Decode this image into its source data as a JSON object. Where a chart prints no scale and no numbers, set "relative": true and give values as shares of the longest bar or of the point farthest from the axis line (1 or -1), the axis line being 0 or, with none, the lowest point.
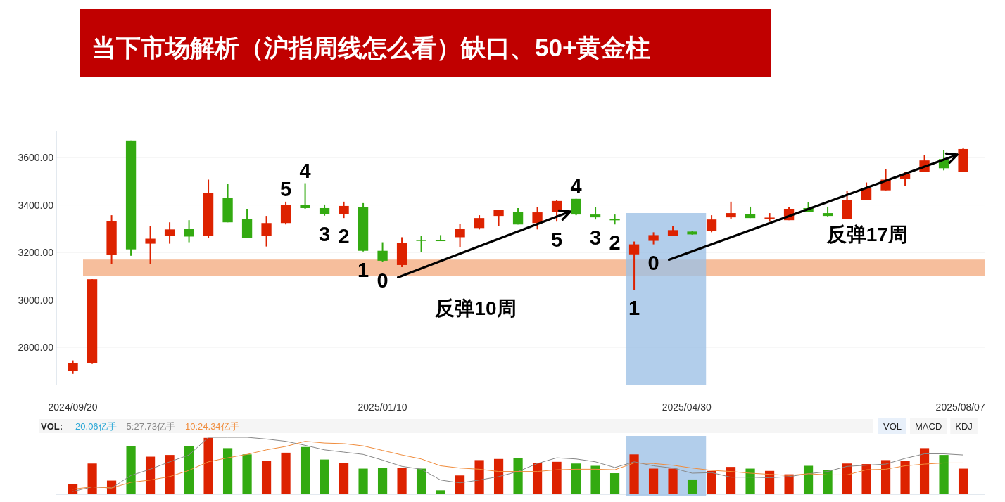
{
  "chart_data": [
    {
      "type": "candlestick",
      "title": "当下市场解析（沪指周线怎么看）缺口、50+黄金柱",
      "x": [
        "2024-09-20",
        "2024-09-27",
        "2024-10-04",
        "2024-10-11",
        "2024-10-18",
        "2024-10-25",
        "2024-11-01",
        "2024-11-08",
        "2024-11-15",
        "2024-11-22",
        "2024-11-29",
        "2024-12-06",
        "2024-12-13",
        "2024-12-20",
        "2024-12-27",
        "2025-01-03",
        "2025-01-10",
        "2025-01-17",
        "2025-01-24",
        "2025-01-31",
        "2025-02-07",
        "2025-02-14",
        "2025-02-21",
        "2025-02-28",
        "2025-03-07",
        "2025-03-14",
        "2025-03-21",
        "2025-03-28",
        "2025-04-04",
        "2025-04-11",
        "2025-04-18",
        "2025-04-25",
        "2025-05-02",
        "2025-05-09",
        "2025-05-16",
        "2025-05-23",
        "2025-05-30",
        "2025-06-06",
        "2025-06-13",
        "2025-06-20",
        "2025-06-27",
        "2025-07-04",
        "2025-07-11",
        "2025-07-18",
        "2025-07-25",
        "2025-08-01",
        "2025-08-08"
      ],
      "ohlc": [
        [
          2700,
          2745,
          2688,
          2733
        ],
        [
          2733,
          3087,
          2730,
          3087
        ],
        [
          3189,
          3357,
          3150,
          3333
        ],
        [
          3672,
          3672,
          3186,
          3213
        ],
        [
          3237,
          3312,
          3150,
          3258
        ],
        [
          3270,
          3327,
          3237,
          3297
        ],
        [
          3300,
          3336,
          3243,
          3267
        ],
        [
          3270,
          3507,
          3261,
          3450
        ],
        [
          3429,
          3489,
          3327,
          3327
        ],
        [
          3342,
          3384,
          3261,
          3261
        ],
        [
          3270,
          3354,
          3225,
          3324
        ],
        [
          3324,
          3414,
          3318,
          3399
        ],
        [
          3399,
          3492,
          3384,
          3387
        ],
        [
          3387,
          3402,
          3355,
          3363
        ],
        [
          3363,
          3414,
          3345,
          3396
        ],
        [
          3390,
          3408,
          3204,
          3207
        ],
        [
          3207,
          3243,
          3160,
          3165
        ],
        [
          3147,
          3264,
          3138,
          3240
        ],
        [
          3253,
          3270,
          3201,
          3250
        ],
        [
          3252,
          3273,
          3249,
          3249
        ],
        [
          3264,
          3321,
          3222,
          3300
        ],
        [
          3303,
          3357,
          3297,
          3345
        ],
        [
          3354,
          3378,
          3312,
          3378
        ],
        [
          3372,
          3387,
          3318,
          3318
        ],
        [
          3324,
          3390,
          3297,
          3369
        ],
        [
          3372,
          3420,
          3330,
          3417
        ],
        [
          3426,
          3426,
          3357,
          3360
        ],
        [
          3360,
          3390,
          3339,
          3348
        ],
        [
          3340,
          3360,
          3318,
          3338
        ],
        [
          3192,
          3246,
          3042,
          3234
        ],
        [
          3249,
          3285,
          3234,
          3273
        ],
        [
          3270,
          3312,
          3270,
          3294
        ],
        [
          3288,
          3290,
          3275,
          3276
        ],
        [
          3291,
          3357,
          3285,
          3339
        ],
        [
          3348,
          3414,
          3342,
          3366
        ],
        [
          3363,
          3393,
          3345,
          3345
        ],
        [
          3343,
          3366,
          3330,
          3347
        ],
        [
          3336,
          3390,
          3336,
          3384
        ],
        [
          3387,
          3411,
          3370,
          3372
        ],
        [
          3366,
          3393,
          3352,
          3354
        ],
        [
          3342,
          3459,
          3342,
          3420
        ],
        [
          3420,
          3495,
          3420,
          3471
        ],
        [
          3462,
          3552,
          3462,
          3507
        ],
        [
          3510,
          3540,
          3480,
          3531
        ],
        [
          3540,
          3612,
          3540,
          3588
        ],
        [
          3594,
          3633,
          3546,
          3555
        ],
        [
          3540,
          3642,
          3540,
          3636
        ]
      ],
      "colors": [
        "#dd2200",
        "#dd2200",
        "#dd2200",
        "#33aa11",
        "#dd2200",
        "#dd2200",
        "#33aa11",
        "#dd2200",
        "#33aa11",
        "#33aa11",
        "#dd2200",
        "#dd2200",
        "#33aa11",
        "#33aa11",
        "#dd2200",
        "#33aa11",
        "#33aa11",
        "#dd2200",
        "#33aa11",
        "#33aa11",
        "#dd2200",
        "#dd2200",
        "#dd2200",
        "#33aa11",
        "#dd2200",
        "#dd2200",
        "#33aa11",
        "#33aa11",
        "#33aa11",
        "#dd2200",
        "#dd2200",
        "#dd2200",
        "#33aa11",
        "#dd2200",
        "#dd2200",
        "#33aa11",
        "#dd2200",
        "#dd2200",
        "#33aa11",
        "#33aa11",
        "#dd2200",
        "#dd2200",
        "#dd2200",
        "#dd2200",
        "#dd2200",
        "#33aa11",
        "#dd2200"
      ],
      "xlim": [
        "2024-09-14",
        "2025-08-16"
      ],
      "xticks": [
        {
          "value": "2024-09-20",
          "label": "2024/09/20"
        },
        {
          "value": "2025-01-10",
          "label": "2025/01/10"
        },
        {
          "value": "2025-04-30",
          "label": "2025/04/30"
        },
        {
          "value": "2025-08-07",
          "label": "2025/08/07"
        }
      ],
      "ylim": [
        2640,
        3710
      ],
      "yticks": [
        {
          "value": 2800,
          "label": "2800.00"
        },
        {
          "value": 3000,
          "label": "3000.00"
        },
        {
          "value": 3200,
          "label": "3200.00"
        },
        {
          "value": 3400,
          "label": "3400.00"
        },
        {
          "value": 3600,
          "label": "3600.00"
        }
      ],
      "grid": "y",
      "bands": [
        {
          "axis": "y",
          "from": 3100,
          "to": 3170,
          "color": "#f4b086"
        },
        {
          "axis": "x",
          "from": "2025-04-08",
          "to": "2025-05-07",
          "color": "#9cc0e6"
        }
      ],
      "annotations": [
        {
          "text": "5",
          "x": "2024-12-06",
          "y": 3414
        },
        {
          "text": "4",
          "x": "2024-12-13",
          "y": 3492
        },
        {
          "text": "3",
          "x": "2024-12-20",
          "y": 3355
        },
        {
          "text": "2",
          "x": "2024-12-27",
          "y": 3345
        },
        {
          "text": "1",
          "x": "2025-01-03",
          "y": 3204
        },
        {
          "text": "0",
          "x": "2025-01-10",
          "y": 3160
        },
        "反弹10周",
        {
          "text": "4",
          "x": "2025-03-21",
          "y": 3426
        },
        {
          "text": "5",
          "x": "2025-03-14",
          "y": 3330
        },
        {
          "text": "3",
          "x": "2025-03-28",
          "y": 3339
        },
        {
          "text": "2",
          "x": "2025-04-04",
          "y": 3318
        },
        {
          "text": "1",
          "x": "2025-04-11",
          "y": 3042
        },
        {
          "text": "0",
          "x": "2025-04-18",
          "y": 3234
        },
        "反弹17周"
      ]
    },
    {
      "type": "bar",
      "relative": true,
      "legend": "top",
      "legend_title": "VOL:",
      "x": [
        "2024-09-20",
        "2024-09-27",
        "2024-10-04",
        "2024-10-11",
        "2024-10-18",
        "2024-10-25",
        "2024-11-01",
        "2024-11-08",
        "2024-11-15",
        "2024-11-22",
        "2024-11-29",
        "2024-12-06",
        "2024-12-13",
        "2024-12-20",
        "2024-12-27",
        "2025-01-03",
        "2025-01-10",
        "2025-01-17",
        "2025-01-24",
        "2025-01-31",
        "2025-02-07",
        "2025-02-14",
        "2025-02-21",
        "2025-02-28",
        "2025-03-07",
        "2025-03-14",
        "2025-03-21",
        "2025-03-28",
        "2025-04-04",
        "2025-04-11",
        "2025-04-18",
        "2025-04-25",
        "2025-05-02",
        "2025-05-09",
        "2025-05-16",
        "2025-05-23",
        "2025-05-30",
        "2025-06-06",
        "2025-06-13",
        "2025-06-20",
        "2025-06-27",
        "2025-07-04",
        "2025-07-11",
        "2025-07-18",
        "2025-07-25",
        "2025-08-01",
        "2025-08-08"
      ],
      "xlim": [
        "2024-09-14",
        "2025-08-16"
      ],
      "series": [
        {
          "name": "20.06亿手",
          "type": "bar",
          "color": "#2aa7d6",
          "colors": [
            "#dd2200",
            "#dd2200",
            "#dd2200",
            "#33aa11",
            "#dd2200",
            "#dd2200",
            "#33aa11",
            "#dd2200",
            "#33aa11",
            "#33aa11",
            "#dd2200",
            "#dd2200",
            "#33aa11",
            "#33aa11",
            "#dd2200",
            "#33aa11",
            "#33aa11",
            "#dd2200",
            "#33aa11",
            "#33aa11",
            "#dd2200",
            "#dd2200",
            "#dd2200",
            "#33aa11",
            "#dd2200",
            "#dd2200",
            "#33aa11",
            "#33aa11",
            "#33aa11",
            "#dd2200",
            "#dd2200",
            "#dd2200",
            "#33aa11",
            "#dd2200",
            "#dd2200",
            "#33aa11",
            "#dd2200",
            "#dd2200",
            "#33aa11",
            "#33aa11",
            "#dd2200",
            "#dd2200",
            "#dd2200",
            "#dd2200",
            "#dd2200",
            "#33aa11",
            "#dd2200"
          ],
          "values": [
            0.18,
            0.54,
            0.24,
            0.85,
            0.66,
            0.69,
            0.85,
            0.99,
            0.81,
            0.7,
            0.59,
            0.73,
            0.83,
            0.61,
            0.55,
            0.45,
            0.46,
            0.46,
            0.45,
            0.07,
            0.33,
            0.6,
            0.62,
            0.63,
            0.55,
            0.57,
            0.54,
            0.5,
            0.37,
            0.7,
            0.45,
            0.45,
            0.26,
            0.41,
            0.48,
            0.45,
            0.41,
            0.35,
            0.5,
            0.43,
            0.54,
            0.53,
            0.6,
            0.59,
            0.81,
            0.69,
            0.45
          ]
        },
        {
          "name": "5:27.73亿手",
          "type": "line",
          "color": "#888888",
          "values": [
            0.05,
            0.13,
            0.11,
            0.33,
            0.44,
            0.57,
            0.69,
            1,
            1,
            1,
            0.97,
            0.93,
            0.86,
            0.78,
            0.74,
            0.7,
            0.6,
            0.49,
            0.44,
            0.25,
            0.2,
            0.25,
            0.31,
            0.4,
            0.54,
            0.64,
            0.62,
            0.57,
            0.47,
            0.57,
            0.5,
            0.46,
            0.37,
            0.38,
            0.3,
            0.3,
            0.29,
            0.31,
            0.36,
            0.4,
            0.49,
            0.51,
            0.53,
            0.63,
            0.71,
            0.71,
            0.69
          ]
        },
        {
          "name": "10:24.34亿手",
          "type": "line",
          "color": "#f08c3c",
          "values": [
            0.09,
            0.13,
            0.11,
            0.21,
            0.25,
            0.31,
            0.42,
            0.57,
            0.64,
            0.7,
            0.78,
            0.84,
            0.93,
            0.9,
            0.89,
            0.85,
            0.77,
            0.69,
            0.62,
            0.5,
            0.46,
            0.44,
            0.4,
            0.4,
            0.4,
            0.43,
            0.44,
            0.44,
            0.43,
            0.55,
            0.54,
            0.51,
            0.46,
            0.42,
            0.4,
            0.37,
            0.35,
            0.33,
            0.36,
            0.34,
            0.34,
            0.43,
            0.44,
            0.5,
            0.53,
            0.55,
            0.55
          ]
        }
      ],
      "bands": [
        {
          "axis": "x",
          "from": "2025-04-08",
          "to": "2025-05-07",
          "color": "#9cc0e6"
        }
      ],
      "annotations": [
        "VOL",
        "MACD",
        "KDJ"
      ]
    }
  ]
}
